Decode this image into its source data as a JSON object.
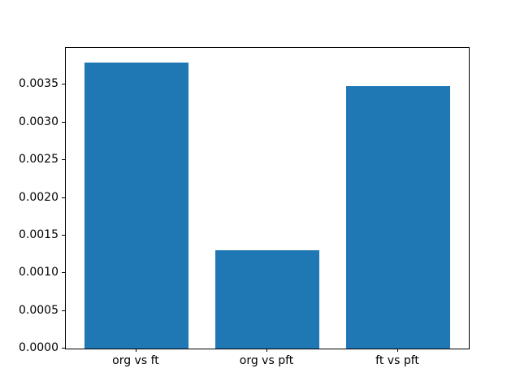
{
  "chart_data": {
    "type": "bar",
    "categories": [
      "org vs ft",
      "org vs pft",
      "ft vs pft"
    ],
    "values": [
      0.0038,
      0.0013,
      0.00348
    ],
    "title": "",
    "xlabel": "",
    "ylabel": "",
    "ylim": [
      0,
      0.00399
    ],
    "yticks": [
      0.0,
      0.0005,
      0.001,
      0.0015,
      0.002,
      0.0025,
      0.003,
      0.0035
    ],
    "ytick_labels": [
      "0.0000",
      "0.0005",
      "0.0010",
      "0.0015",
      "0.0020",
      "0.0025",
      "0.0030",
      "0.0035"
    ],
    "bar_color": "#1f77b4",
    "axis_color": "#000000",
    "background_color": "#ffffff",
    "grid": false,
    "legend": null,
    "bar_width_fraction": 0.8
  }
}
